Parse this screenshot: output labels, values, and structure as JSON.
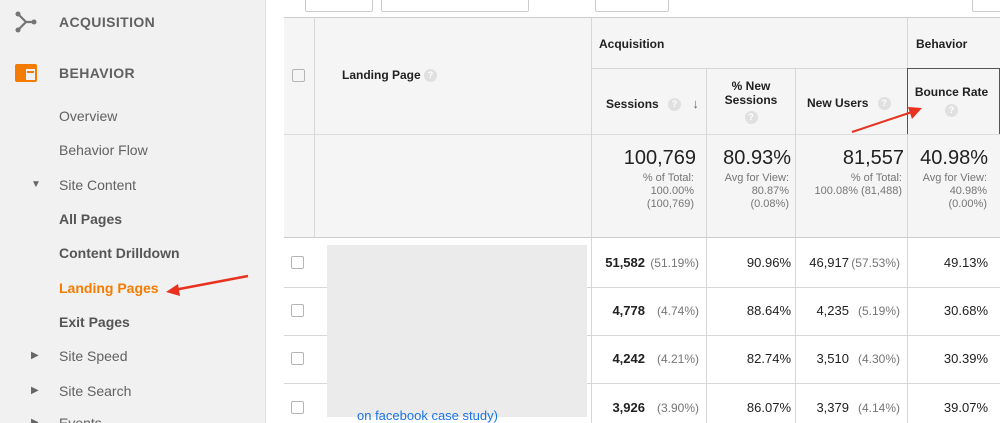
{
  "sidebar": {
    "acquisition_label": "ACQUISITION",
    "behavior_label": "BEHAVIOR",
    "items": {
      "overview": "Overview",
      "behavior_flow": "Behavior Flow",
      "site_content": "Site Content",
      "all_pages": "All Pages",
      "content_drilldown": "Content Drilldown",
      "landing_pages": "Landing Pages",
      "exit_pages": "Exit Pages",
      "site_speed": "Site Speed",
      "site_search": "Site Search",
      "events": "Events"
    }
  },
  "table": {
    "groups": {
      "acquisition": "Acquisition",
      "behavior": "Behavior"
    },
    "columns": {
      "landing_page": "Landing Page",
      "sessions": "Sessions",
      "new_sessions_line1": "% New",
      "new_sessions_line2": "Sessions",
      "new_users": "New Users",
      "bounce_rate": "Bounce Rate"
    },
    "totals": {
      "sessions": "100,769",
      "sessions_sub1": "% of Total:",
      "sessions_sub2": "100.00%",
      "sessions_sub3": "(100,769)",
      "new_sessions": "80.93%",
      "new_sessions_sub1": "Avg for View:",
      "new_sessions_sub2": "80.87%",
      "new_sessions_sub3": "(0.08%)",
      "new_users": "81,557",
      "new_users_sub1": "% of Total:",
      "new_users_sub2": "100.08% (81,488)",
      "bounce_rate": "40.98%",
      "bounce_sub1": "Avg for View:",
      "bounce_sub2": "40.98%",
      "bounce_sub3": "(0.00%)"
    },
    "rows": [
      {
        "sessions": "51,582",
        "sessions_pct": "(51.19%)",
        "new_sessions": "90.96%",
        "new_users": "46,917",
        "new_users_pct": "(57.53%)",
        "bounce_rate": "49.13%"
      },
      {
        "sessions": "4,778",
        "sessions_pct": "(4.74%)",
        "new_sessions": "88.64%",
        "new_users": "4,235",
        "new_users_pct": "(5.19%)",
        "bounce_rate": "30.68%"
      },
      {
        "sessions": "4,242",
        "sessions_pct": "(4.21%)",
        "new_sessions": "82.74%",
        "new_users": "3,510",
        "new_users_pct": "(4.30%)",
        "bounce_rate": "30.39%"
      },
      {
        "sessions": "3,926",
        "sessions_pct": "(3.90%)",
        "new_sessions": "86.07%",
        "new_users": "3,379",
        "new_users_pct": "(4.14%)",
        "bounce_rate": "39.07%"
      }
    ],
    "partial_link_text": "on facebook case study)"
  },
  "colors": {
    "accent_orange": "#f57c00",
    "arrow_red": "#e8321f"
  },
  "icons": {
    "acquisition": "acquisition-network-icon",
    "behavior": "behavior-window-icon",
    "help": "help-question-icon",
    "sort": "sort-down-arrow-icon"
  }
}
